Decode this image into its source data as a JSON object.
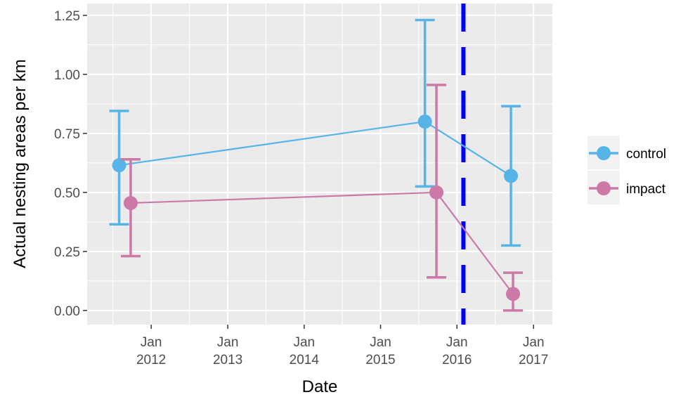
{
  "chart_data": {
    "type": "line",
    "xlabel": "Date",
    "ylabel": "Actual nesting areas per km",
    "ylim": [
      -0.06,
      1.3
    ],
    "xlim": [
      "2011-03-01",
      "2017-04-01"
    ],
    "y_ticks": [
      "0.00",
      "0.25",
      "0.50",
      "0.75",
      "1.00",
      "1.25"
    ],
    "y_tick_values": [
      0,
      0.25,
      0.5,
      0.75,
      1.0,
      1.25
    ],
    "x_ticks": [
      {
        "date": "2012-01-01",
        "line1": "Jan",
        "line2": "2012"
      },
      {
        "date": "2013-01-01",
        "line1": "Jan",
        "line2": "2013"
      },
      {
        "date": "2014-01-01",
        "line1": "Jan",
        "line2": "2014"
      },
      {
        "date": "2015-01-01",
        "line1": "Jan",
        "line2": "2015"
      },
      {
        "date": "2016-01-01",
        "line1": "Jan",
        "line2": "2016"
      },
      {
        "date": "2017-01-01",
        "line1": "Jan",
        "line2": "2017"
      }
    ],
    "grid": true,
    "legend_position": "right",
    "vline": {
      "date": "2016-02-01",
      "color": "#0000ff",
      "style": "dashed"
    },
    "series": [
      {
        "name": "control",
        "color": "#56b4e9",
        "points": [
          {
            "x": "2011-08-01",
            "y": 0.615,
            "ymin": 0.365,
            "ymax": 0.845
          },
          {
            "x": "2015-08-01",
            "y": 0.8,
            "ymin": 0.525,
            "ymax": 1.23
          },
          {
            "x": "2016-09-15",
            "y": 0.57,
            "ymin": 0.275,
            "ymax": 0.865
          }
        ]
      },
      {
        "name": "impact",
        "color": "#cc79a7",
        "points": [
          {
            "x": "2011-09-25",
            "y": 0.455,
            "ymin": 0.23,
            "ymax": 0.64
          },
          {
            "x": "2015-09-25",
            "y": 0.5,
            "ymin": 0.14,
            "ymax": 0.955
          },
          {
            "x": "2016-09-25",
            "y": 0.07,
            "ymin": 0.0,
            "ymax": 0.16
          }
        ]
      }
    ]
  }
}
